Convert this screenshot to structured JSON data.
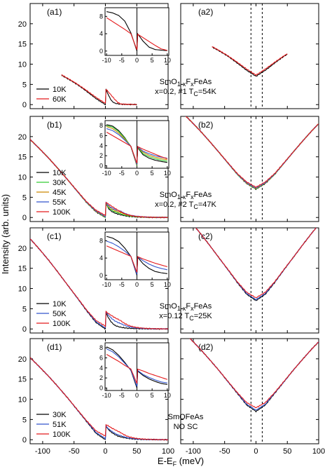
{
  "chart_data": {
    "type": "line",
    "ylabel": "Intensity (arb. units)",
    "xlabel": "E-E",
    "xlabel_sub": "F",
    "xlabel_unit": " (meV)",
    "x_ticks": [
      "-100",
      "-50",
      "0",
      "50",
      "100"
    ],
    "y_ticks": [
      "0",
      "5",
      "10",
      "15",
      "20"
    ],
    "inset_x_ticks": [
      "-10",
      "-5",
      "0",
      "5",
      "10"
    ],
    "xlim": [
      -120,
      100
    ],
    "ylim": [
      -1,
      25
    ],
    "dashed_lines_x": [
      -8,
      10
    ],
    "rows": [
      {
        "left_label": "(a1)",
        "right_label": "(a2)",
        "sample_line1": {
          "p1": "SmO",
          "s1": "1-x",
          "p2": "F",
          "s2": "x",
          "p3": "FeAs"
        },
        "sample_line2": {
          "p1": "x=0.2, #1 T",
          "s1": "C",
          "p2": "=54K"
        },
        "inset_y_ticks": [
          "0",
          "4",
          "8"
        ],
        "inset_ylim": [
          -1,
          10
        ],
        "legend": [
          "10K",
          "60K"
        ],
        "series": [
          {
            "name": "10K",
            "color": "#000000",
            "x0": -70,
            "x1": 50,
            "sym": [
              0.0,
              1.5,
              3.3,
              5.0,
              6.4,
              7.7,
              8.8,
              9.3
            ],
            "ish": [
              0.0,
              4.2,
              6.9,
              8.2,
              8.8,
              9.1
            ],
            "ineg": [
              4.2,
              2.3,
              0.9,
              0.35,
              0.2,
              0.1
            ]
          },
          {
            "name": "60K",
            "color": "#e41a1c",
            "x0": -70,
            "x1": 50,
            "sym": [
              0.3,
              1.8,
              3.5,
              5.1,
              6.5,
              7.8,
              8.8,
              9.3
            ],
            "ish": [
              0.3,
              4.0,
              5.0,
              5.9,
              6.8,
              7.7
            ],
            "ineg": [
              4.0,
              3.1,
              2.2,
              1.3,
              0.5,
              0.15
            ]
          }
        ]
      },
      {
        "left_label": "(b1)",
        "right_label": "(b2)",
        "sample_line1": {
          "p1": "SmO",
          "s1": "1-x",
          "p2": "F",
          "s2": "x",
          "p3": "FeAs"
        },
        "sample_line2": {
          "p1": "x=0.2, #2 T",
          "s1": "C",
          "p2": "=47K"
        },
        "inset_y_ticks": [
          "0",
          "2",
          "4",
          "6",
          "8"
        ],
        "inset_ylim": [
          -0.5,
          9
        ],
        "legend": [
          "10K",
          "30K",
          "45K",
          "55K",
          "100K"
        ],
        "series": [
          {
            "name": "10K",
            "color": "#000000",
            "x0": -120,
            "x1": 100,
            "sym": [
              0.0,
              1.4,
              3.7,
              6.5,
              9.3,
              12.0,
              14.6,
              17.0,
              19.3
            ],
            "ish": [
              0.0,
              3.8,
              5.6,
              7.0,
              7.9,
              8.2
            ],
            "ineg": [
              3.8,
              2.2,
              1.5,
              1.1,
              0.85,
              0.65
            ]
          },
          {
            "name": "30K",
            "color": "#33cc33",
            "x0": -120,
            "x1": 100,
            "sym": [
              0.05,
              1.5,
              3.7,
              6.5,
              9.3,
              12.0,
              14.6,
              17.0,
              19.3
            ],
            "ish": [
              0.05,
              3.9,
              5.5,
              6.8,
              7.7,
              8.0
            ],
            "ineg": [
              3.9,
              2.4,
              1.8,
              1.4,
              1.1,
              0.9
            ]
          },
          {
            "name": "45K",
            "color": "#cc8800",
            "x0": -120,
            "x1": 100,
            "sym": [
              0.15,
              1.5,
              3.8,
              6.5,
              9.3,
              12.0,
              14.6,
              17.0,
              19.3
            ],
            "ish": [
              0.15,
              3.9,
              5.3,
              6.5,
              7.4,
              7.8
            ],
            "ineg": [
              3.9,
              2.7,
              2.1,
              1.7,
              1.4,
              1.2
            ]
          },
          {
            "name": "55K",
            "color": "#3355cc",
            "x0": -120,
            "x1": 100,
            "sym": [
              0.25,
              1.6,
              3.8,
              6.5,
              9.3,
              12.0,
              14.6,
              17.0,
              19.3
            ],
            "ish": [
              0.25,
              3.9,
              5.1,
              6.2,
              7.0,
              7.4
            ],
            "ineg": [
              3.9,
              2.9,
              2.4,
              2.0,
              1.7,
              1.5
            ]
          },
          {
            "name": "100K",
            "color": "#e41a1c",
            "x0": -120,
            "x1": 100,
            "sym": [
              0.5,
              1.8,
              3.9,
              6.6,
              9.3,
              12.0,
              14.6,
              17.0,
              19.3
            ],
            "ish": [
              0.5,
              3.9,
              4.6,
              5.3,
              6.0,
              6.7
            ],
            "ineg": [
              3.9,
              3.3,
              2.8,
              2.3,
              1.8,
              1.4
            ]
          }
        ]
      },
      {
        "left_label": "(c1)",
        "right_label": "(c2)",
        "sample_line1": {
          "p1": "SmO",
          "s1": "1-x",
          "p2": "F",
          "s2": "x",
          "p3": "FeAs"
        },
        "sample_line2": {
          "p1": "x=0.12 T",
          "s1": "C",
          "p2": "=25K"
        },
        "inset_y_ticks": [
          "0",
          "4",
          "8"
        ],
        "inset_ylim": [
          -1,
          10
        ],
        "legend": [
          "10K",
          "50K",
          "100K"
        ],
        "series": [
          {
            "name": "10K",
            "color": "#000000",
            "x0": -120,
            "x1": 100,
            "sym": [
              0.0,
              1.6,
              4.5,
              7.7,
              10.8,
              13.9,
              16.9,
              19.7,
              22.3
            ],
            "ish": [
              0.0,
              4.4,
              6.3,
              7.8,
              8.6,
              9.0
            ],
            "ineg": [
              4.4,
              2.7,
              1.6,
              0.9,
              0.6,
              0.4
            ]
          },
          {
            "name": "50K",
            "color": "#3355cc",
            "x0": -120,
            "x1": 100,
            "sym": [
              0.25,
              1.8,
              4.6,
              7.7,
              10.8,
              13.9,
              16.9,
              19.7,
              22.3
            ],
            "ish": [
              0.25,
              4.4,
              5.6,
              6.6,
              7.4,
              7.9
            ],
            "ineg": [
              4.4,
              3.4,
              2.6,
              2.0,
              1.6,
              1.3
            ]
          },
          {
            "name": "100K",
            "color": "#e41a1c",
            "x0": -120,
            "x1": 100,
            "sym": [
              0.7,
              2.1,
              4.7,
              7.8,
              10.8,
              13.9,
              16.9,
              19.7,
              22.3
            ],
            "ish": [
              0.7,
              4.4,
              5.0,
              5.6,
              6.2,
              6.8
            ],
            "ineg": [
              4.4,
              3.8,
              3.3,
              2.8,
              2.4,
              2.0
            ]
          }
        ]
      },
      {
        "left_label": "(d1)",
        "right_label": "(d2)",
        "sample_line1": {
          "p1": "SmOFeAs"
        },
        "sample_line2": {
          "p1": "NO SC"
        },
        "inset_y_ticks": [
          "0",
          "2",
          "4",
          "6",
          "8"
        ],
        "inset_ylim": [
          -0.5,
          9
        ],
        "legend": [
          "30K",
          "51K",
          "100K"
        ],
        "series": [
          {
            "name": "30K",
            "color": "#000000",
            "x0": -120,
            "x1": 100,
            "sym": [
              0.0,
              1.6,
              4.5,
              7.4,
              10.3,
              13.0,
              15.6,
              18.0,
              20.3
            ],
            "ish": [
              0.0,
              3.5,
              5.1,
              6.5,
              7.6,
              8.2
            ],
            "ineg": [
              3.5,
              2.5,
              1.8,
              1.3,
              0.9,
              0.7
            ]
          },
          {
            "name": "51K",
            "color": "#3355cc",
            "x0": -120,
            "x1": 100,
            "sym": [
              0.3,
              1.8,
              4.6,
              7.4,
              10.3,
              13.0,
              15.6,
              18.0,
              20.3
            ],
            "ish": [
              0.3,
              3.6,
              4.9,
              6.2,
              7.2,
              7.8
            ],
            "ineg": [
              3.6,
              2.7,
              2.1,
              1.6,
              1.2,
              1.0
            ]
          },
          {
            "name": "100K",
            "color": "#e41a1c",
            "x0": -120,
            "x1": 100,
            "sym": [
              0.9,
              2.2,
              4.7,
              7.5,
              10.3,
              13.0,
              15.6,
              18.0,
              20.3
            ],
            "ish": [
              0.9,
              3.8,
              4.5,
              5.3,
              6.0,
              6.7
            ],
            "ineg": [
              3.8,
              3.4,
              2.9,
              2.5,
              2.1,
              1.7
            ]
          }
        ]
      }
    ]
  }
}
